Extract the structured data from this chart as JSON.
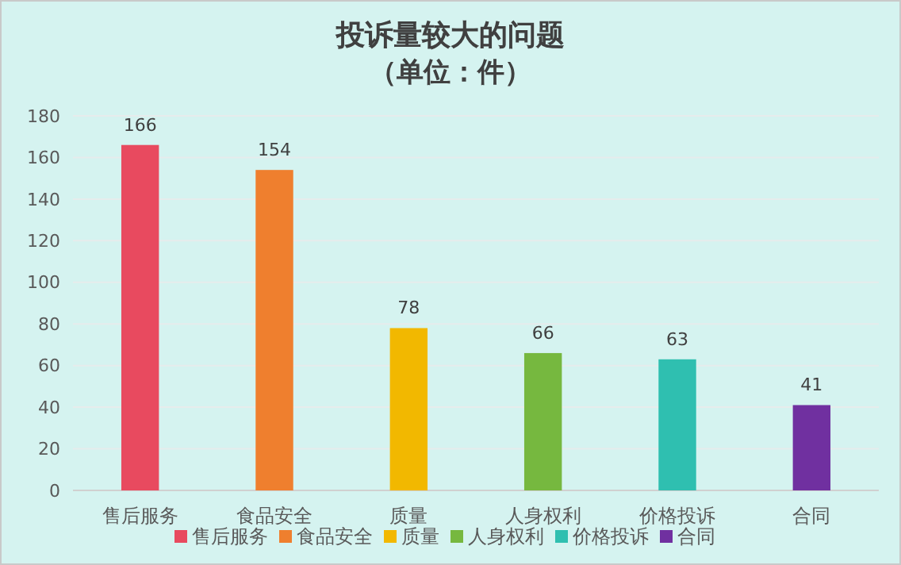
{
  "chart_data": {
    "type": "bar",
    "title": "投诉量较大的问题",
    "subtitle": "（单位：件）",
    "categories": [
      "售后服务",
      "食品安全",
      "质量",
      "人身权利",
      "价格投诉",
      "合同"
    ],
    "series": [
      {
        "name": "售后服务",
        "color": "#e84a5f",
        "values": [
          166,
          null,
          null,
          null,
          null,
          null
        ]
      },
      {
        "name": "食品安全",
        "color": "#ef7f2e",
        "values": [
          null,
          154,
          null,
          null,
          null,
          null
        ]
      },
      {
        "name": "质量",
        "color": "#f2b800",
        "values": [
          null,
          null,
          78,
          null,
          null,
          null
        ]
      },
      {
        "name": "人身权利",
        "color": "#76b83f",
        "values": [
          null,
          null,
          null,
          66,
          null,
          null
        ]
      },
      {
        "name": "价格投诉",
        "color": "#2fbfb0",
        "values": [
          null,
          null,
          null,
          null,
          63,
          null
        ]
      },
      {
        "name": "合同",
        "color": "#7030a0",
        "values": [
          null,
          null,
          null,
          null,
          null,
          41
        ]
      }
    ],
    "ylim": [
      0,
      180
    ],
    "yticks": [
      0,
      20,
      40,
      60,
      80,
      100,
      120,
      140,
      160,
      180
    ],
    "grid": "y",
    "data_labels": true,
    "legend": "bottom"
  }
}
